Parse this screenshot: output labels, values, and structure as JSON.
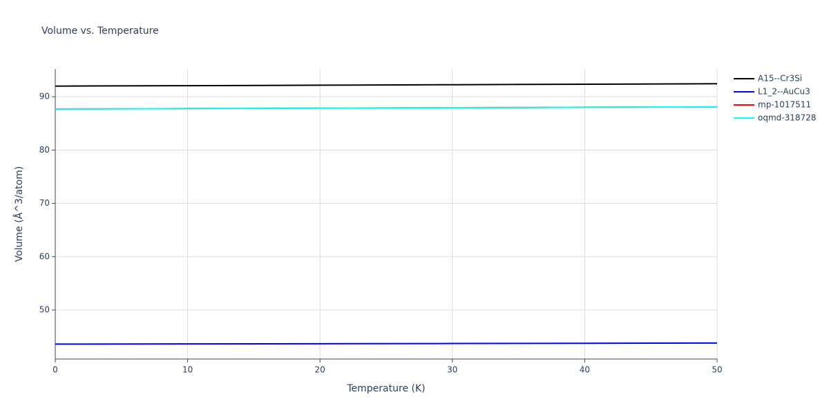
{
  "chart_data": {
    "type": "line",
    "title": "Volume vs. Temperature",
    "x_label": "Temperature (K)",
    "y_label": "Volume (Å^3/atom)",
    "x": [
      0,
      10,
      20,
      30,
      40,
      50
    ],
    "series": [
      {
        "name": "A15--Cr3Si",
        "color": "#000000",
        "values": [
          92.0,
          92.08,
          92.17,
          92.26,
          92.35,
          92.45
        ]
      },
      {
        "name": "L1_2--AuCu3",
        "color": "#0000ff",
        "values": [
          43.6,
          43.63,
          43.67,
          43.71,
          43.75,
          43.8
        ]
      },
      {
        "name": "mp-1017511",
        "color": "#ff0000",
        "values": [
          87.7,
          87.78,
          87.86,
          87.94,
          88.02,
          88.1
        ]
      },
      {
        "name": "oqmd-318728",
        "color": "#00ffff",
        "values": [
          87.7,
          87.78,
          87.86,
          87.94,
          88.02,
          88.1
        ]
      }
    ],
    "xlim": [
      0,
      50
    ],
    "ylim": [
      40.8,
      95.2
    ],
    "xticks": [
      0,
      10,
      20,
      30,
      40,
      50
    ],
    "yticks": [
      50,
      60,
      70,
      80,
      90
    ],
    "grid": true,
    "legend": "outside-right"
  }
}
